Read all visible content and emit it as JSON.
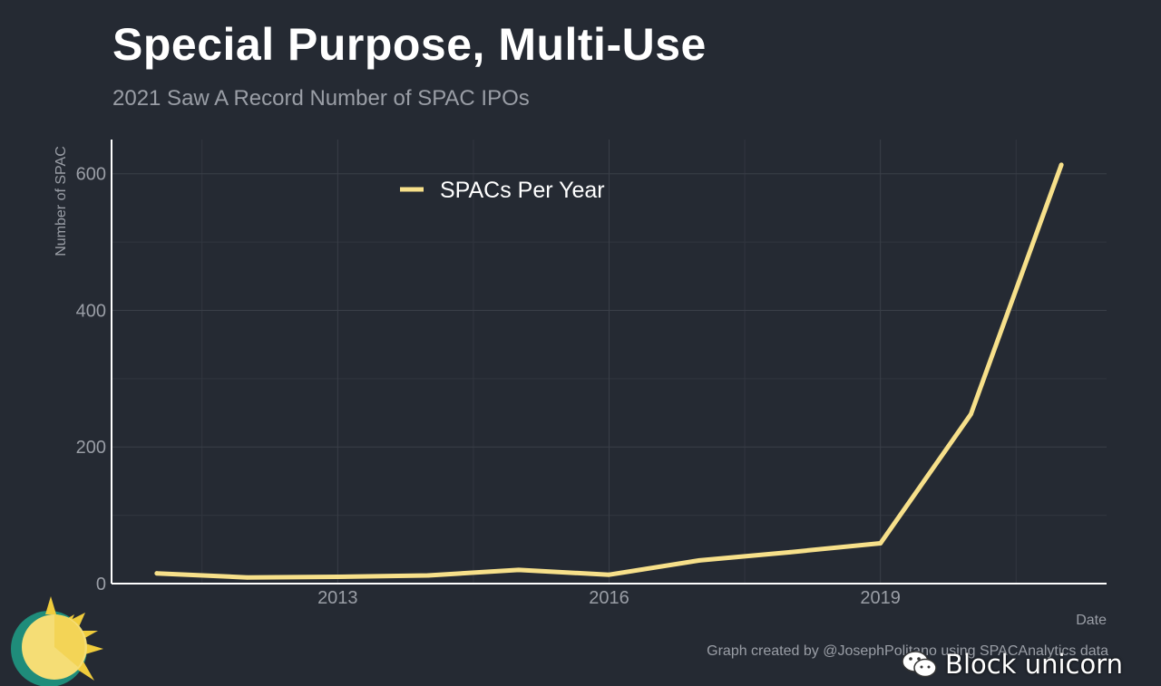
{
  "chart_data": {
    "type": "line",
    "title": "Special Purpose, Multi-Use",
    "subtitle": "2021 Saw A Record Number of SPAC IPOs",
    "xlabel": "Date",
    "ylabel": "Number of SPAC",
    "caption": "Graph created by @JosephPolitano using SPACAnalytics data",
    "xlim": [
      2010.5,
      2021.5
    ],
    "ylim": [
      0,
      650
    ],
    "x_ticks": [
      2013,
      2016,
      2019
    ],
    "x_minor_ticks": [
      2011.5,
      2014.5,
      2017.5,
      2020.5
    ],
    "y_ticks": [
      0,
      200,
      400,
      600
    ],
    "y_minor_ticks": [
      100,
      300,
      500
    ],
    "grid": true,
    "legend_position": "top",
    "series": [
      {
        "name": "SPACs Per Year",
        "color": "#f7e08a",
        "x": [
          2011,
          2012,
          2013,
          2014,
          2015,
          2016,
          2017,
          2018,
          2019,
          2020,
          2021
        ],
        "y": [
          15,
          9,
          10,
          12,
          20,
          13,
          34,
          46,
          59,
          248,
          613
        ]
      }
    ]
  },
  "watermark": {
    "text": "Block unicorn",
    "icon": "wechat-icon"
  },
  "logo": {
    "icon": "sun-logo-icon",
    "colors": [
      "#f5dd75",
      "#f0cc3c",
      "#1f8c7a"
    ]
  }
}
